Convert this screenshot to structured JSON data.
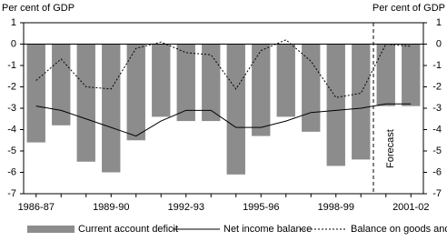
{
  "chart_data": {
    "type": "bar_line",
    "y_label": "Per cent of GDP",
    "y2_label": "Per cent of GDP",
    "categories": [
      "1986-87",
      null,
      null,
      "1989-90",
      null,
      null,
      "1992-93",
      null,
      null,
      "1995-96",
      null,
      null,
      "1998-99",
      null,
      null,
      "2001-02"
    ],
    "series": [
      {
        "name": "Current account deficit",
        "type": "bar",
        "color": "#8c8c8c",
        "values": [
          -4.6,
          -3.8,
          -5.5,
          -6.0,
          -4.5,
          -3.4,
          -3.6,
          -3.6,
          -6.1,
          -4.3,
          -3.4,
          -4.1,
          -5.7,
          -5.4,
          -2.9,
          -2.9
        ]
      },
      {
        "name": "Net income balance",
        "type": "line",
        "color": "#000000",
        "dash": "solid",
        "values": [
          -2.9,
          -3.1,
          -3.5,
          -3.9,
          -4.3,
          -3.6,
          -3.1,
          -3.1,
          -3.9,
          -3.9,
          -3.6,
          -3.2,
          -3.1,
          -3.0,
          -2.8,
          -2.8
        ]
      },
      {
        "name": "Balance on goods and services",
        "type": "line",
        "color": "#000000",
        "dash": "dotted",
        "values": [
          -1.7,
          -0.7,
          -2.0,
          -2.1,
          -0.2,
          0.1,
          -0.4,
          -0.5,
          -2.1,
          -0.3,
          0.2,
          -0.8,
          -2.5,
          -2.3,
          0.0,
          -0.1
        ]
      }
    ],
    "annotation": "Forecast",
    "ylim": [
      -7,
      1
    ],
    "yticks": [
      -7,
      -6,
      -5,
      -4,
      -3,
      -2,
      -1,
      0,
      1
    ],
    "y2lim": [
      -7,
      1
    ],
    "y2ticks": [
      -7,
      -6,
      -5,
      -4,
      -3,
      -2,
      -1,
      0,
      1
    ]
  }
}
